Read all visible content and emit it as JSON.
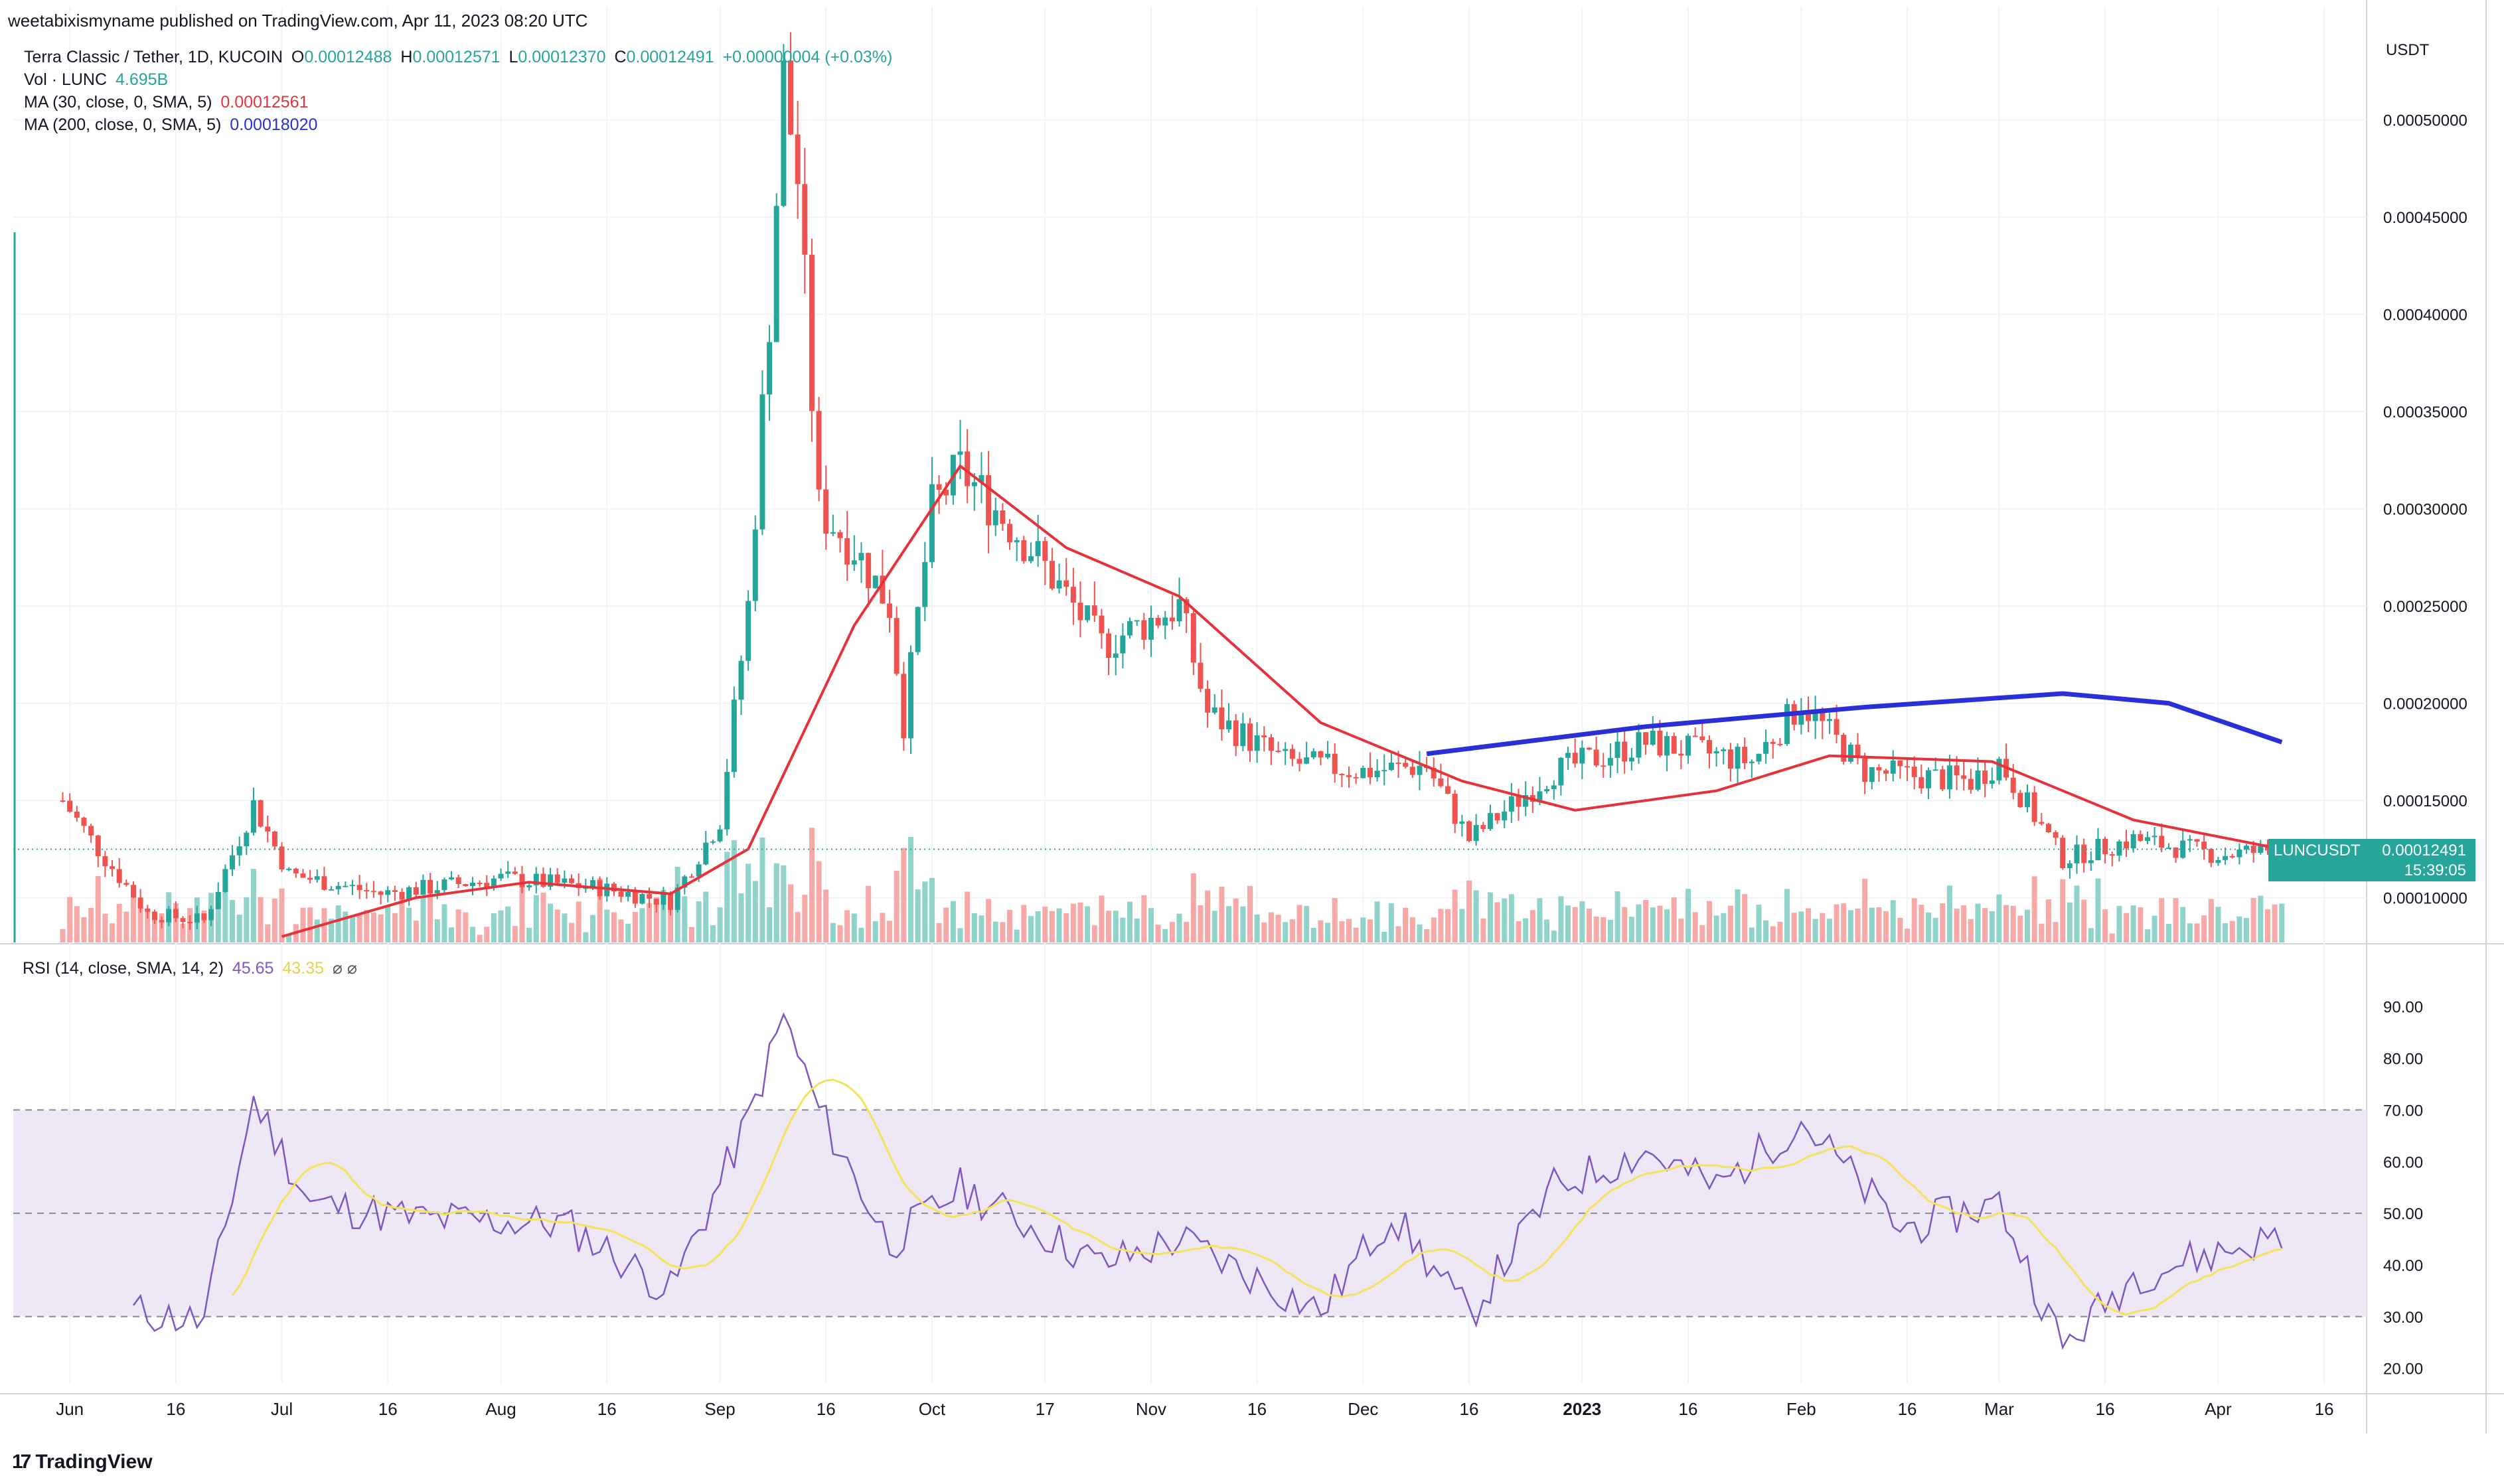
{
  "header": {
    "published_text": "weetabixismyname published on TradingView.com, Apr 11, 2023 08:20 UTC"
  },
  "legend": {
    "symbol": "Terra Classic / Tether, 1D, KUCOIN",
    "open_label": "O",
    "open": "0.00012488",
    "high_label": "H",
    "high": "0.00012571",
    "low_label": "L",
    "low": "0.00012370",
    "close_label": "C",
    "close": "0.00012491",
    "change": "+0.00000004 (+0.03%)",
    "vol_label": "Vol · LUNC",
    "vol": "4.695B",
    "ma30_label": "MA (30, close, 0, SMA, 5)",
    "ma30": "0.00012561",
    "ma200_label": "MA (200, close, 0, SMA, 5)",
    "ma200": "0.00018020",
    "rsi_label": "RSI (14, close, SMA, 14, 2)",
    "rsi": "45.65",
    "rsi_ma": "43.35",
    "rsi_icons": "⌀ ⌀"
  },
  "price_scale_unit": "USDT",
  "last_price_box": {
    "symbol": "LUNCUSDT",
    "price": "0.00012491",
    "countdown": "15:39:05"
  },
  "branding": {
    "logo_text": "TradingView",
    "logo_mark": "17"
  },
  "colors": {
    "up": "#26a69a",
    "down": "#ef5350",
    "vol_up": "#8fd3cb",
    "vol_down": "#f6a9a7",
    "ma30": "#e5323b",
    "ma200": "#2b2fd8",
    "rsi": "#7e57c2",
    "rsi_ma": "#f5e25b",
    "rsi_band": "#ede7f6",
    "grid": "#f0f3fa",
    "text": "#131722"
  },
  "chart_data": [
    {
      "type": "candlestick",
      "title": "Terra Classic / Tether, 1D, KUCOIN",
      "y_unit": "USDT",
      "y_ticks": [
        "0.00010000",
        "0.00015000",
        "0.00020000",
        "0.00025000",
        "0.00030000",
        "0.00035000",
        "0.00040000",
        "0.00045000",
        "0.00050000"
      ],
      "ylim": [
        7.7e-05,
        0.000548
      ],
      "x_tick_labels": [
        "Jun",
        "16",
        "Jul",
        "16",
        "Aug",
        "16",
        "Sep",
        "16",
        "Oct",
        "17",
        "Nov",
        "16",
        "Dec",
        "16",
        "2023",
        "16",
        "Feb",
        "16",
        "Mar",
        "16",
        "Apr",
        "16"
      ],
      "close_series_approx": [
        {
          "date": "2022-05-31",
          "close": 0.00015
        },
        {
          "date": "2022-06-05",
          "close": 0.000125
        },
        {
          "date": "2022-06-12",
          "close": 9.2e-05
        },
        {
          "date": "2022-06-20",
          "close": 8.8e-05
        },
        {
          "date": "2022-06-27",
          "close": 0.000148
        },
        {
          "date": "2022-07-02",
          "close": 0.000112
        },
        {
          "date": "2022-07-15",
          "close": 0.000102
        },
        {
          "date": "2022-08-01",
          "close": 0.00011
        },
        {
          "date": "2022-08-15",
          "close": 0.000105
        },
        {
          "date": "2022-08-25",
          "close": 9.8e-05
        },
        {
          "date": "2022-09-01",
          "close": 0.00014
        },
        {
          "date": "2022-09-05",
          "close": 0.00025
        },
        {
          "date": "2022-09-08",
          "close": 0.0004
        },
        {
          "date": "2022-09-10",
          "close": 0.00052
        },
        {
          "date": "2022-09-12",
          "close": 0.00047
        },
        {
          "date": "2022-09-15",
          "close": 0.0003
        },
        {
          "date": "2022-09-20",
          "close": 0.00028
        },
        {
          "date": "2022-09-25",
          "close": 0.00025
        },
        {
          "date": "2022-09-27",
          "close": 0.00019
        },
        {
          "date": "2022-10-01",
          "close": 0.0003
        },
        {
          "date": "2022-10-05",
          "close": 0.00032
        },
        {
          "date": "2022-10-15",
          "close": 0.00028
        },
        {
          "date": "2022-10-25",
          "close": 0.00023
        },
        {
          "date": "2022-11-05",
          "close": 0.00025
        },
        {
          "date": "2022-11-09",
          "close": 0.000195
        },
        {
          "date": "2022-11-20",
          "close": 0.00017
        },
        {
          "date": "2022-12-01",
          "close": 0.000165
        },
        {
          "date": "2022-12-10",
          "close": 0.000168
        },
        {
          "date": "2022-12-16",
          "close": 0.00013
        },
        {
          "date": "2022-12-28",
          "close": 0.000165
        },
        {
          "date": "2023-01-10",
          "close": 0.00018
        },
        {
          "date": "2023-01-25",
          "close": 0.00017
        },
        {
          "date": "2023-02-01",
          "close": 0.0002
        },
        {
          "date": "2023-02-10",
          "close": 0.000165
        },
        {
          "date": "2023-02-25",
          "close": 0.00016
        },
        {
          "date": "2023-03-01",
          "close": 0.00017
        },
        {
          "date": "2023-03-10",
          "close": 0.00012
        },
        {
          "date": "2023-03-20",
          "close": 0.00013
        },
        {
          "date": "2023-04-01",
          "close": 0.000122
        },
        {
          "date": "2023-04-10",
          "close": 0.000125
        }
      ],
      "ma30_approx": [
        {
          "date": "2022-07-01",
          "value": 8e-05
        },
        {
          "date": "2022-07-20",
          "value": 0.0001
        },
        {
          "date": "2022-08-05",
          "value": 0.000108
        },
        {
          "date": "2022-08-25",
          "value": 0.000102
        },
        {
          "date": "2022-09-05",
          "value": 0.000125
        },
        {
          "date": "2022-09-20",
          "value": 0.00024
        },
        {
          "date": "2022-10-05",
          "value": 0.000322
        },
        {
          "date": "2022-10-20",
          "value": 0.00028
        },
        {
          "date": "2022-11-05",
          "value": 0.000255
        },
        {
          "date": "2022-11-25",
          "value": 0.00019
        },
        {
          "date": "2022-12-15",
          "value": 0.00016
        },
        {
          "date": "2022-12-31",
          "value": 0.000145
        },
        {
          "date": "2023-01-20",
          "value": 0.000155
        },
        {
          "date": "2023-02-05",
          "value": 0.000173
        },
        {
          "date": "2023-02-28",
          "value": 0.00017
        },
        {
          "date": "2023-03-20",
          "value": 0.00014
        },
        {
          "date": "2023-04-10",
          "value": 0.000125
        }
      ],
      "ma200_approx": [
        {
          "date": "2022-12-10",
          "value": 0.000174
        },
        {
          "date": "2023-01-10",
          "value": 0.000188
        },
        {
          "date": "2023-02-10",
          "value": 0.000198
        },
        {
          "date": "2023-03-10",
          "value": 0.000205
        },
        {
          "date": "2023-03-25",
          "value": 0.0002
        },
        {
          "date": "2023-04-10",
          "value": 0.00018
        }
      ]
    },
    {
      "type": "line",
      "title": "RSI (14, close, SMA, 14, 2)",
      "y_ticks": [
        "20.00",
        "30.00",
        "40.00",
        "50.00",
        "60.00",
        "70.00",
        "80.00",
        "90.00"
      ],
      "ylim": [
        17,
        96
      ],
      "band": [
        30,
        70
      ],
      "midline": 50,
      "rsi_approx": [
        {
          "date": "2022-06-10",
          "value": 31
        },
        {
          "date": "2022-06-20",
          "value": 29
        },
        {
          "date": "2022-06-27",
          "value": 72
        },
        {
          "date": "2022-07-05",
          "value": 52
        },
        {
          "date": "2022-07-20",
          "value": 49
        },
        {
          "date": "2022-08-10",
          "value": 48
        },
        {
          "date": "2022-08-25",
          "value": 35
        },
        {
          "date": "2022-09-05",
          "value": 68
        },
        {
          "date": "2022-09-10",
          "value": 88
        },
        {
          "date": "2022-09-15",
          "value": 70
        },
        {
          "date": "2022-09-25",
          "value": 44
        },
        {
          "date": "2022-10-05",
          "value": 55
        },
        {
          "date": "2022-10-25",
          "value": 40
        },
        {
          "date": "2022-11-05",
          "value": 45
        },
        {
          "date": "2022-11-25",
          "value": 31
        },
        {
          "date": "2022-12-05",
          "value": 50
        },
        {
          "date": "2022-12-16",
          "value": 30
        },
        {
          "date": "2022-12-28",
          "value": 55
        },
        {
          "date": "2023-01-10",
          "value": 62
        },
        {
          "date": "2023-01-20",
          "value": 55
        },
        {
          "date": "2023-02-01",
          "value": 68
        },
        {
          "date": "2023-02-15",
          "value": 47
        },
        {
          "date": "2023-03-01",
          "value": 52
        },
        {
          "date": "2023-03-10",
          "value": 24
        },
        {
          "date": "2023-03-20",
          "value": 38
        },
        {
          "date": "2023-04-10",
          "value": 45.65
        }
      ]
    }
  ]
}
